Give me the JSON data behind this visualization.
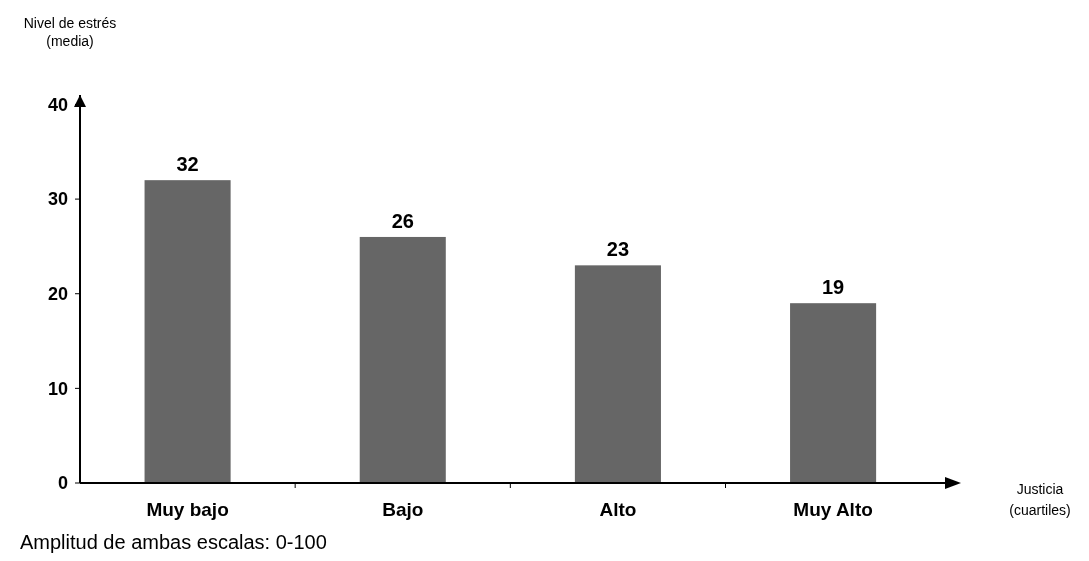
{
  "chart_data": {
    "type": "bar",
    "ylabel": "Nivel de estrés\n(media)",
    "xlabel": "Justicia\n(cuartiles)",
    "categories": [
      "Muy bajo",
      "Bajo",
      "Alto",
      "Muy Alto"
    ],
    "values": [
      32,
      26,
      23,
      19
    ],
    "color": "#666666",
    "data_labels": true,
    "ylim": [
      0,
      41
    ],
    "yticks": [
      0,
      10,
      20,
      30,
      40
    ],
    "annotations": [
      "Amplitud de ambas escalas: 0-100"
    ]
  }
}
